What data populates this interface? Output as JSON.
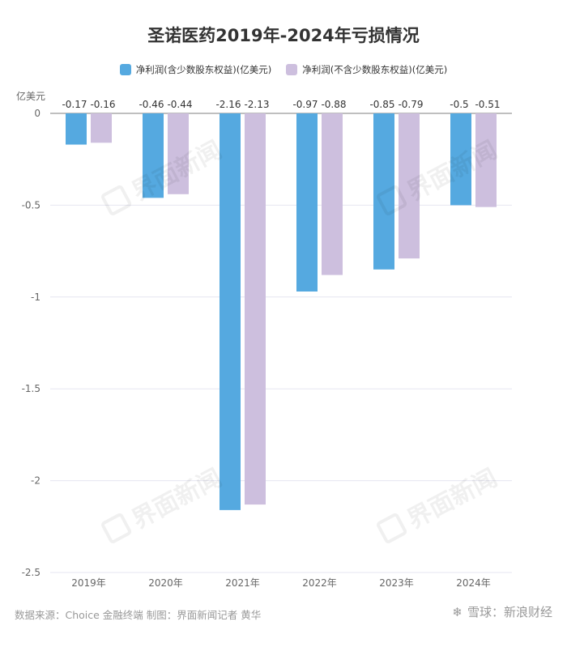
{
  "title": "圣诺医药2019年-2024年亏损情况",
  "unit_label": "亿美元",
  "footer": {
    "source": "数据来源：Choice 金融终端 制图：界面新闻记者 黄华",
    "brand": "雪球：新浪财经"
  },
  "watermark_text": "界面新闻",
  "colors": {
    "series1": "#55a9e0",
    "series2": "#cdbfde",
    "grid": "#e6e6f0",
    "zero_line": "#999999"
  },
  "chart_data": {
    "type": "bar",
    "title": "圣诺医药2019年-2024年亏损情况",
    "xlabel": "",
    "ylabel": "亿美元",
    "categories": [
      "2019年",
      "2020年",
      "2021年",
      "2022年",
      "2023年",
      "2024年"
    ],
    "series": [
      {
        "name": "净利润(含少数股东权益)(亿美元)",
        "values": [
          -0.17,
          -0.46,
          -2.16,
          -0.97,
          -0.85,
          -0.5
        ],
        "labels": [
          "-0.17",
          "-0.46",
          "-2.16",
          "-0.97",
          "-0.85",
          "-0.5"
        ]
      },
      {
        "name": "净利润(不含少数股东权益)(亿美元)",
        "values": [
          -0.16,
          -0.44,
          -2.13,
          -0.88,
          -0.79,
          -0.51
        ],
        "labels": [
          "-0.16",
          "-0.44",
          "-2.13",
          "-0.88",
          "-0.79",
          "-0.51"
        ]
      }
    ],
    "ylim": [
      -2.5,
      0
    ],
    "yticks": [
      0,
      -0.5,
      -1,
      -1.5,
      -2,
      -2.5
    ],
    "ytick_labels": [
      "0",
      "-0.5",
      "-1",
      "-1.5",
      "-2",
      "-2.5"
    ],
    "grid": true,
    "legend_position": "top"
  }
}
